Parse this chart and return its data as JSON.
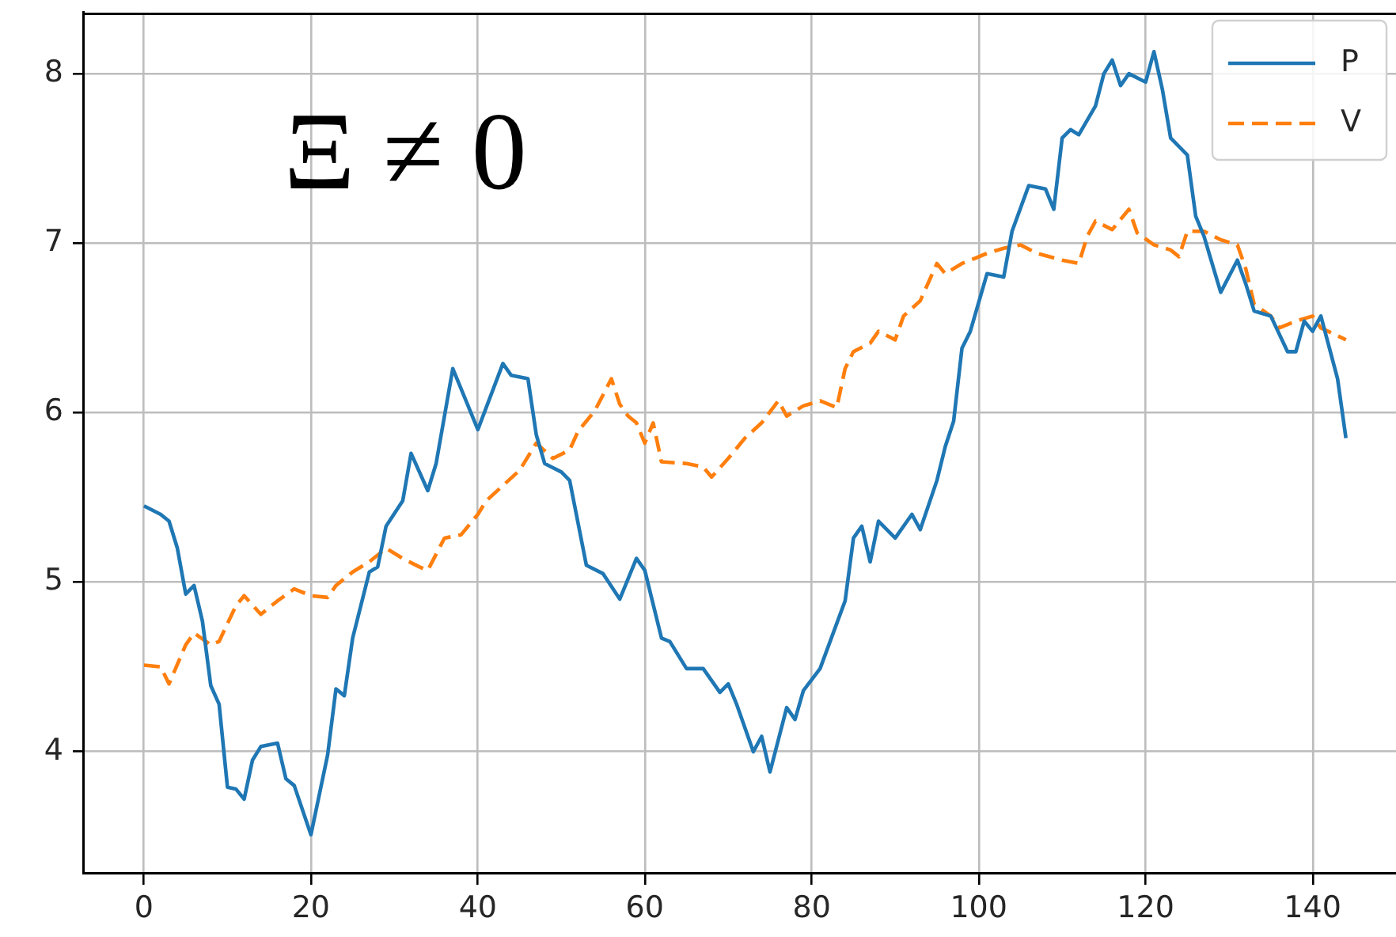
{
  "chart_data": {
    "type": "line",
    "annotations": [
      "Ξ ≠ 0"
    ],
    "xlim": [
      -7.2,
      150
    ],
    "ylim": [
      3.28,
      8.36
    ],
    "xticks": [
      0,
      20,
      40,
      60,
      80,
      100,
      120,
      140
    ],
    "yticks": [
      4,
      5,
      6,
      7,
      8
    ],
    "grid": true,
    "legend": "top right",
    "marker": "none",
    "series": [
      {
        "name": "P",
        "color": "#1f77b4",
        "line_style": "solid",
        "x": [
          0,
          2,
          3,
          4,
          5,
          6,
          7,
          8,
          9,
          10,
          11,
          12,
          13,
          14,
          16,
          17,
          18,
          20,
          22,
          23,
          24,
          25,
          27,
          28,
          29,
          31,
          32,
          34,
          35,
          37,
          40,
          43,
          44,
          46,
          47,
          48,
          50,
          51,
          53,
          55,
          57,
          59,
          60,
          62,
          63,
          65,
          67,
          69,
          70,
          71,
          73,
          74,
          75,
          77,
          78,
          79,
          81,
          84,
          85,
          86,
          87,
          88,
          90,
          92,
          93,
          95,
          96,
          97,
          98,
          99,
          101,
          103,
          104,
          106,
          108,
          109,
          110,
          111,
          112,
          114,
          115,
          116,
          117,
          118,
          120,
          121,
          122,
          123,
          125,
          126,
          127,
          129,
          131,
          132,
          133,
          135,
          137,
          138,
          139,
          140,
          141,
          143,
          144
        ],
        "values": [
          5.45,
          5.4,
          5.36,
          5.2,
          4.93,
          4.98,
          4.77,
          4.39,
          4.28,
          3.79,
          3.78,
          3.72,
          3.95,
          4.03,
          4.05,
          3.84,
          3.8,
          3.51,
          3.98,
          4.37,
          4.33,
          4.67,
          5.06,
          5.09,
          5.33,
          5.48,
          5.76,
          5.54,
          5.7,
          6.26,
          5.9,
          6.29,
          6.22,
          6.2,
          5.87,
          5.7,
          5.65,
          5.6,
          5.1,
          5.05,
          4.9,
          5.14,
          5.07,
          4.67,
          4.65,
          4.49,
          4.49,
          4.35,
          4.4,
          4.28,
          4.0,
          4.09,
          3.88,
          4.26,
          4.19,
          4.36,
          4.49,
          4.89,
          5.26,
          5.33,
          5.12,
          5.36,
          5.26,
          5.4,
          5.31,
          5.6,
          5.8,
          5.95,
          6.38,
          6.48,
          6.82,
          6.8,
          7.07,
          7.34,
          7.32,
          7.2,
          7.62,
          7.67,
          7.64,
          7.81,
          8.0,
          8.08,
          7.93,
          8.0,
          7.95,
          8.13,
          7.91,
          7.62,
          7.52,
          7.16,
          7.04,
          6.71,
          6.9,
          6.76,
          6.6,
          6.57,
          6.36,
          6.36,
          6.54,
          6.48,
          6.57,
          6.2,
          5.85
        ]
      },
      {
        "name": "V",
        "color": "#ff7f0e",
        "line_style": "dashed",
        "x": [
          0,
          2,
          3,
          5,
          6,
          8,
          9,
          11,
          12,
          14,
          16,
          18,
          20,
          22,
          23,
          25,
          27,
          29,
          31,
          33,
          34,
          36,
          38,
          40,
          41,
          43,
          45,
          47,
          49,
          51,
          52,
          54,
          56,
          57,
          58,
          59,
          60,
          61,
          62,
          65,
          67,
          68,
          70,
          72,
          74,
          76,
          77,
          79,
          81,
          83,
          84,
          85,
          87,
          88,
          90,
          91,
          93,
          95,
          96,
          98,
          101,
          103,
          105,
          107,
          110,
          112,
          113,
          114,
          116,
          118,
          119,
          121,
          123,
          124,
          125,
          127,
          129,
          131,
          132,
          133,
          135,
          136,
          138,
          140,
          141,
          144
        ],
        "values": [
          4.51,
          4.5,
          4.4,
          4.63,
          4.7,
          4.63,
          4.65,
          4.86,
          4.92,
          4.81,
          4.89,
          4.96,
          4.92,
          4.91,
          4.98,
          5.06,
          5.12,
          5.2,
          5.14,
          5.09,
          5.07,
          5.26,
          5.28,
          5.4,
          5.48,
          5.57,
          5.66,
          5.82,
          5.73,
          5.78,
          5.89,
          6.01,
          6.2,
          6.05,
          5.98,
          5.94,
          5.82,
          5.94,
          5.71,
          5.7,
          5.68,
          5.62,
          5.73,
          5.85,
          5.94,
          6.07,
          5.98,
          6.04,
          6.07,
          6.03,
          6.26,
          6.36,
          6.41,
          6.48,
          6.43,
          6.57,
          6.66,
          6.88,
          6.82,
          6.88,
          6.94,
          6.97,
          6.99,
          6.94,
          6.9,
          6.88,
          7.04,
          7.13,
          7.08,
          7.2,
          7.06,
          6.99,
          6.96,
          6.92,
          7.07,
          7.07,
          7.02,
          6.99,
          6.85,
          6.64,
          6.57,
          6.5,
          6.54,
          6.57,
          6.5,
          6.43
        ]
      }
    ]
  }
}
